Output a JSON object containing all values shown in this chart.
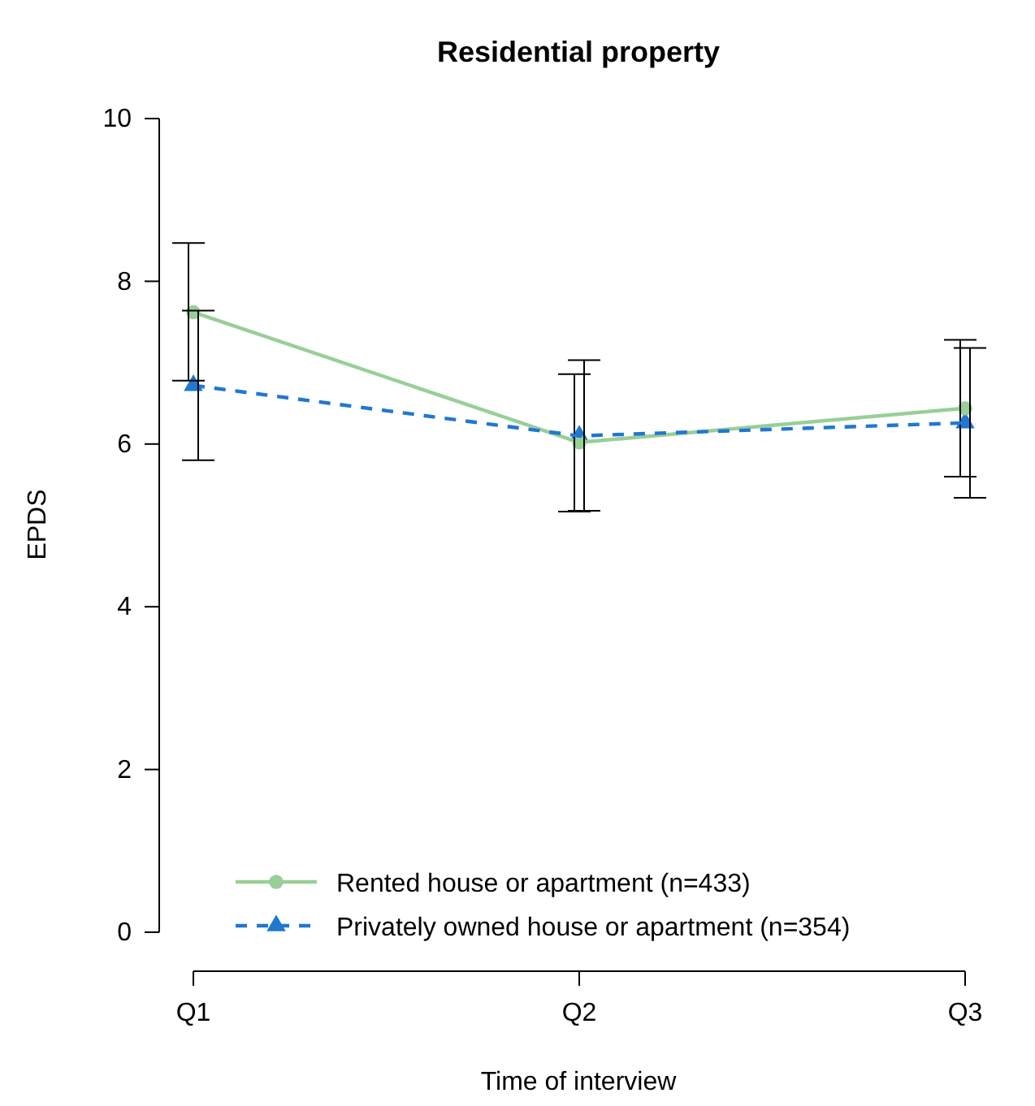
{
  "chart_data": {
    "type": "line",
    "title": "Residential property",
    "xlabel": "Time of interview",
    "ylabel": "EPDS",
    "categories": [
      "Q1",
      "Q2",
      "Q3"
    ],
    "ylim": [
      0,
      10
    ],
    "yticks": [
      0,
      2,
      4,
      6,
      8,
      10
    ],
    "grid": false,
    "legend": "bottom",
    "series": [
      {
        "name": "Rented house or apartment (n=433)",
        "color": "#98cf98",
        "marker": "circle",
        "line_style": "solid",
        "values": [
          7.62,
          6.02,
          6.44
        ],
        "errors": [
          [
            6.78,
            8.47
          ],
          [
            5.17,
            6.86
          ],
          [
            5.6,
            7.28
          ]
        ]
      },
      {
        "name": "Privately owned house or apartment (n=354)",
        "color": "#1f78d1",
        "marker": "triangle",
        "line_style": "dashed",
        "values": [
          6.72,
          6.1,
          6.26
        ],
        "errors": [
          [
            5.8,
            7.64
          ],
          [
            5.18,
            7.03
          ],
          [
            5.34,
            7.18
          ]
        ]
      }
    ]
  }
}
